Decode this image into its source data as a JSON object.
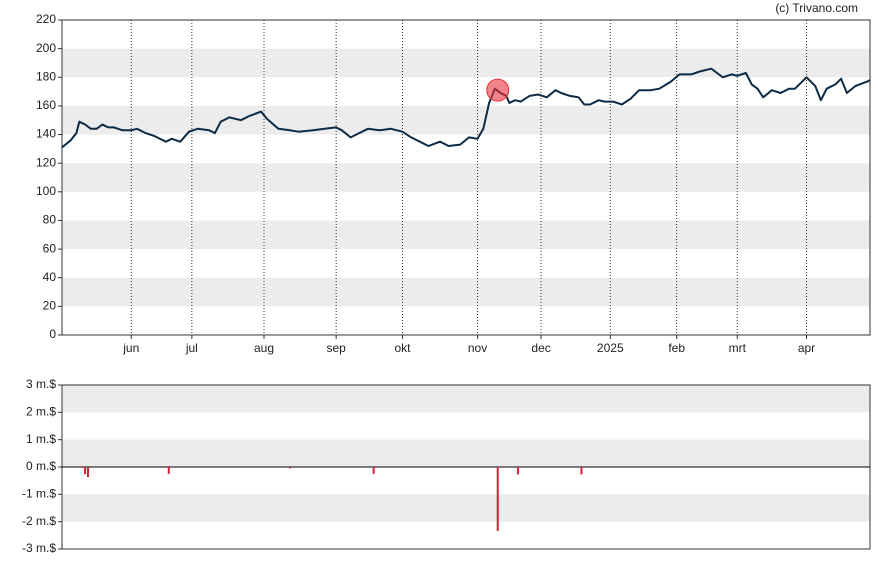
{
  "chart_data": [
    {
      "type": "line",
      "credit": "(c) Trivano.com",
      "color": "#0d2b45",
      "x": [
        0,
        3,
        5,
        6,
        8,
        10,
        12,
        14,
        16,
        18,
        21,
        24,
        26,
        29,
        32,
        36,
        38,
        41,
        44,
        47,
        51,
        53,
        55,
        58,
        62,
        65,
        69,
        71,
        75,
        79,
        82,
        87,
        91,
        95,
        97,
        100,
        103,
        106,
        110,
        114,
        118,
        121,
        124,
        127,
        131,
        134,
        138,
        141,
        144,
        146,
        148,
        150,
        152,
        154,
        155,
        157,
        159,
        162,
        165,
        168,
        171,
        173,
        176,
        179,
        181,
        183,
        186,
        188,
        191,
        194,
        197,
        200,
        204,
        207,
        211,
        214,
        218,
        221,
        225,
        227,
        229,
        232,
        234,
        237,
        239,
        241,
        243,
        246,
        249,
        252,
        254,
        258,
        261,
        263,
        265,
        268,
        270,
        272,
        275,
        279,
        280
      ],
      "values": [
        131,
        136,
        141,
        149,
        147,
        144,
        144,
        147,
        145,
        145,
        143,
        143,
        144,
        141,
        139,
        135,
        137,
        135,
        142,
        144,
        143,
        141,
        149,
        152,
        150,
        153,
        156,
        151,
        144,
        143,
        142,
        143,
        144,
        145,
        143,
        138,
        141,
        144,
        143,
        144,
        142,
        138,
        135,
        132,
        135,
        132,
        133,
        138,
        137,
        144,
        162,
        172,
        169,
        167,
        162,
        164,
        163,
        167,
        168,
        166,
        171,
        169,
        167,
        166,
        161,
        161,
        164,
        163,
        163,
        161,
        165,
        171,
        171,
        172,
        177,
        182,
        182,
        184,
        186,
        183,
        180,
        182,
        181,
        183,
        175,
        172,
        166,
        171,
        169,
        172,
        172,
        180,
        174,
        164,
        172,
        175,
        179,
        169,
        174,
        177,
        178
      ],
      "highlight": {
        "x": 151,
        "value": 171,
        "color": "#e8303a"
      },
      "xlim": [
        0,
        280
      ],
      "ylim": [
        0,
        220
      ],
      "yticks": [
        0,
        20,
        40,
        60,
        80,
        100,
        120,
        140,
        160,
        180,
        200,
        220
      ],
      "xticks": [
        {
          "value": 24,
          "label": "jun"
        },
        {
          "value": 45,
          "label": "jul"
        },
        {
          "value": 70,
          "label": "aug"
        },
        {
          "value": 95,
          "label": "sep"
        },
        {
          "value": 118,
          "label": "okt"
        },
        {
          "value": 144,
          "label": "nov"
        },
        {
          "value": 166,
          "label": "dec"
        },
        {
          "value": 190,
          "label": "2025"
        },
        {
          "value": 213,
          "label": "feb"
        },
        {
          "value": 234,
          "label": "mrt"
        },
        {
          "value": 258,
          "label": "apr"
        }
      ],
      "grid": true
    },
    {
      "type": "bar",
      "color": "#d81e34",
      "x": [
        8,
        9,
        37,
        79,
        108,
        151,
        158,
        180
      ],
      "values": [
        -0.26,
        -0.37,
        -0.25,
        -0.05,
        -0.25,
        -2.34,
        -0.27,
        -0.27
      ],
      "xlim": [
        0,
        280
      ],
      "ylim": [
        -3,
        3
      ],
      "yticks": [
        {
          "value": -3,
          "label": "-3 m.$"
        },
        {
          "value": -2,
          "label": "-2 m.$"
        },
        {
          "value": -1,
          "label": "-1 m.$"
        },
        {
          "value": 0,
          "label": "0 m.$"
        },
        {
          "value": 1,
          "label": "1 m.$"
        },
        {
          "value": 2,
          "label": "2 m.$"
        },
        {
          "value": 3,
          "label": "3 m.$"
        }
      ],
      "grid": true
    }
  ]
}
